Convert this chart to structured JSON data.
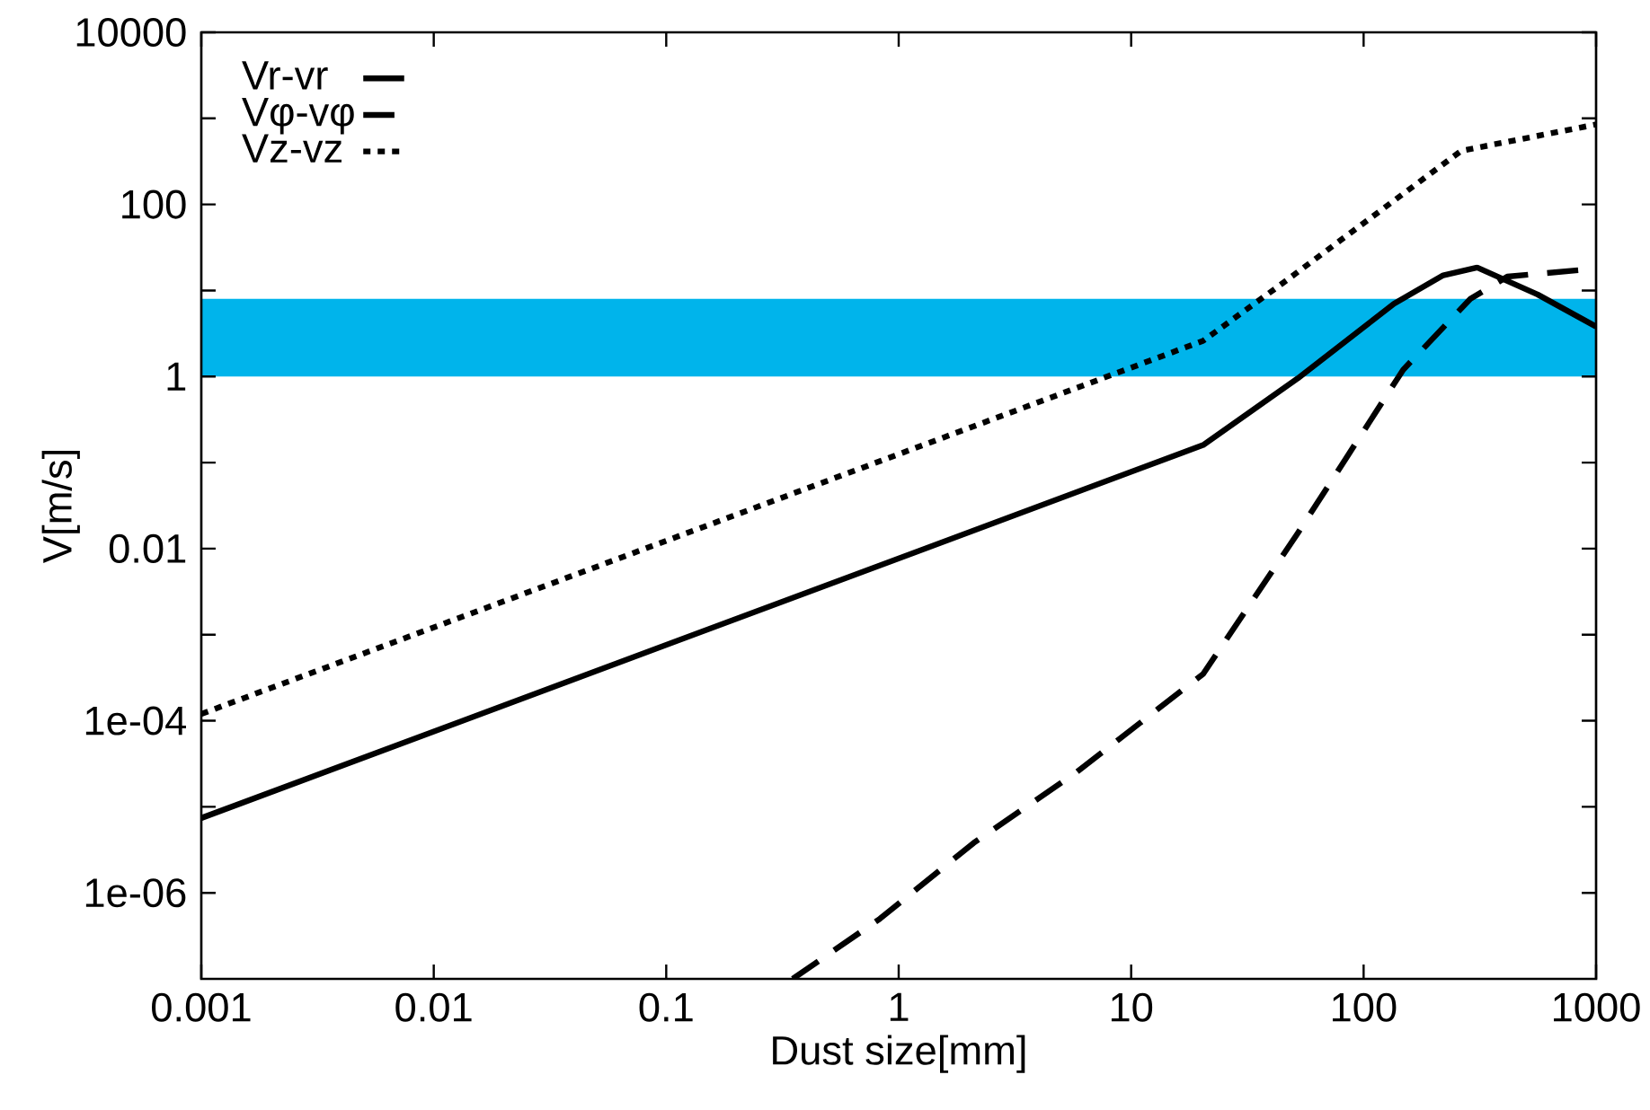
{
  "chart_data": {
    "type": "line",
    "xlabel": "Dust size[mm]",
    "ylabel": "V[m/s]",
    "log": "xy",
    "xlim": [
      0.001,
      1000
    ],
    "ylim": [
      1e-07,
      10000
    ],
    "xticks": [
      0.001,
      0.01,
      0.1,
      1,
      10,
      100,
      1000
    ],
    "yticks": [
      {
        "value": 10000,
        "label": "10000"
      },
      {
        "value": 1000,
        "label": null
      },
      {
        "value": 100,
        "label": "100"
      },
      {
        "value": 10,
        "label": null
      },
      {
        "value": 1,
        "label": "1"
      },
      {
        "value": 0.1,
        "label": null
      },
      {
        "value": 0.01,
        "label": "0.01"
      },
      {
        "value": 0.001,
        "label": null
      },
      {
        "value": 0.0001,
        "label": "1e-04"
      },
      {
        "value": 1e-05,
        "label": null
      },
      {
        "value": 1e-06,
        "label": "1e-06"
      }
    ],
    "legend": "top left",
    "bands": [
      {
        "axis": "y",
        "from": 1,
        "to": 8,
        "color": "#00b4eb"
      }
    ],
    "series": [
      {
        "name": "Vr-vr",
        "color": "#000000",
        "line_style": "solid",
        "x": [
          0.001,
          20.4,
          52,
          135,
          220,
          308,
          560,
          1000
        ],
        "values": [
          7.4e-06,
          0.16,
          0.95,
          7,
          15,
          18.5,
          9,
          3.8
        ]
      },
      {
        "name": "Vφ-vφ",
        "color": "#000000",
        "line_style": "dashed",
        "x": [
          0.35,
          0.83,
          2.1,
          5.8,
          20.4,
          52,
          148,
          288,
          415,
          1000
        ],
        "values": [
          1e-07,
          5e-07,
          3.8e-06,
          2.5e-05,
          0.00035,
          0.015,
          1.2,
          8,
          14.5,
          18
        ]
      },
      {
        "name": "Vz-vz",
        "color": "#000000",
        "line_style": "dotted",
        "x": [
          0.001,
          20.4,
          44,
          263,
          1000
        ],
        "values": [
          0.00012,
          2.6,
          11.7,
          420,
          850
        ]
      }
    ]
  }
}
